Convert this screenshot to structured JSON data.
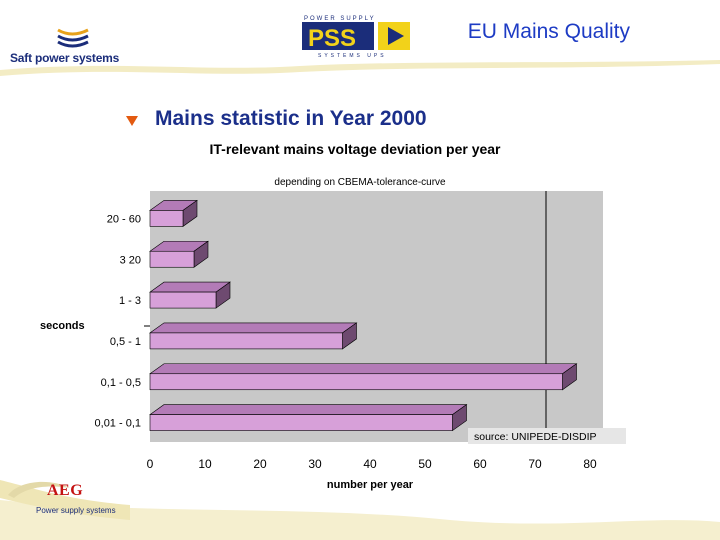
{
  "slide": {
    "title": "EU Mains Quality",
    "bullet": "Mains statistic in Year 2000"
  },
  "branding": {
    "company": "Saft power systems",
    "pss_logo_top": "POWER SUPPLY",
    "pss_logo_main": "PSS",
    "pss_logo_bottom": "SYSTEMS UPS",
    "aeg": "AEG",
    "aeg_sub": "Power supply systems"
  },
  "colors": {
    "title_blue": "#1d3bc4",
    "bar_face": "#d7a0d9",
    "bar_top": "#b37bb7",
    "bar_side": "#6e4a70",
    "plot_bg": "#c8c8c8",
    "bullet_arrow": "#e35a10"
  },
  "chart_data": {
    "type": "bar",
    "orientation": "horizontal",
    "title": "IT-relevant mains voltage deviation per year",
    "subtitle": "depending on CBEMA-tolerance-curve",
    "xlabel": "number per year",
    "ylabel": "seconds",
    "annotation": "source: UNIPEDE-DISDIP",
    "categories": [
      "20 - 60",
      "3 20",
      "1 - 3",
      "0,5 - 1",
      "0,1 - 0,5",
      "0,01 - 0,1"
    ],
    "values": [
      6,
      8,
      12,
      35,
      75,
      55
    ],
    "xlim": [
      0,
      80
    ],
    "xticks": [
      "0",
      "10",
      "20",
      "30",
      "40",
      "50",
      "60",
      "70",
      "80"
    ],
    "grid": "vertical line at 72",
    "reference_line": 72
  }
}
